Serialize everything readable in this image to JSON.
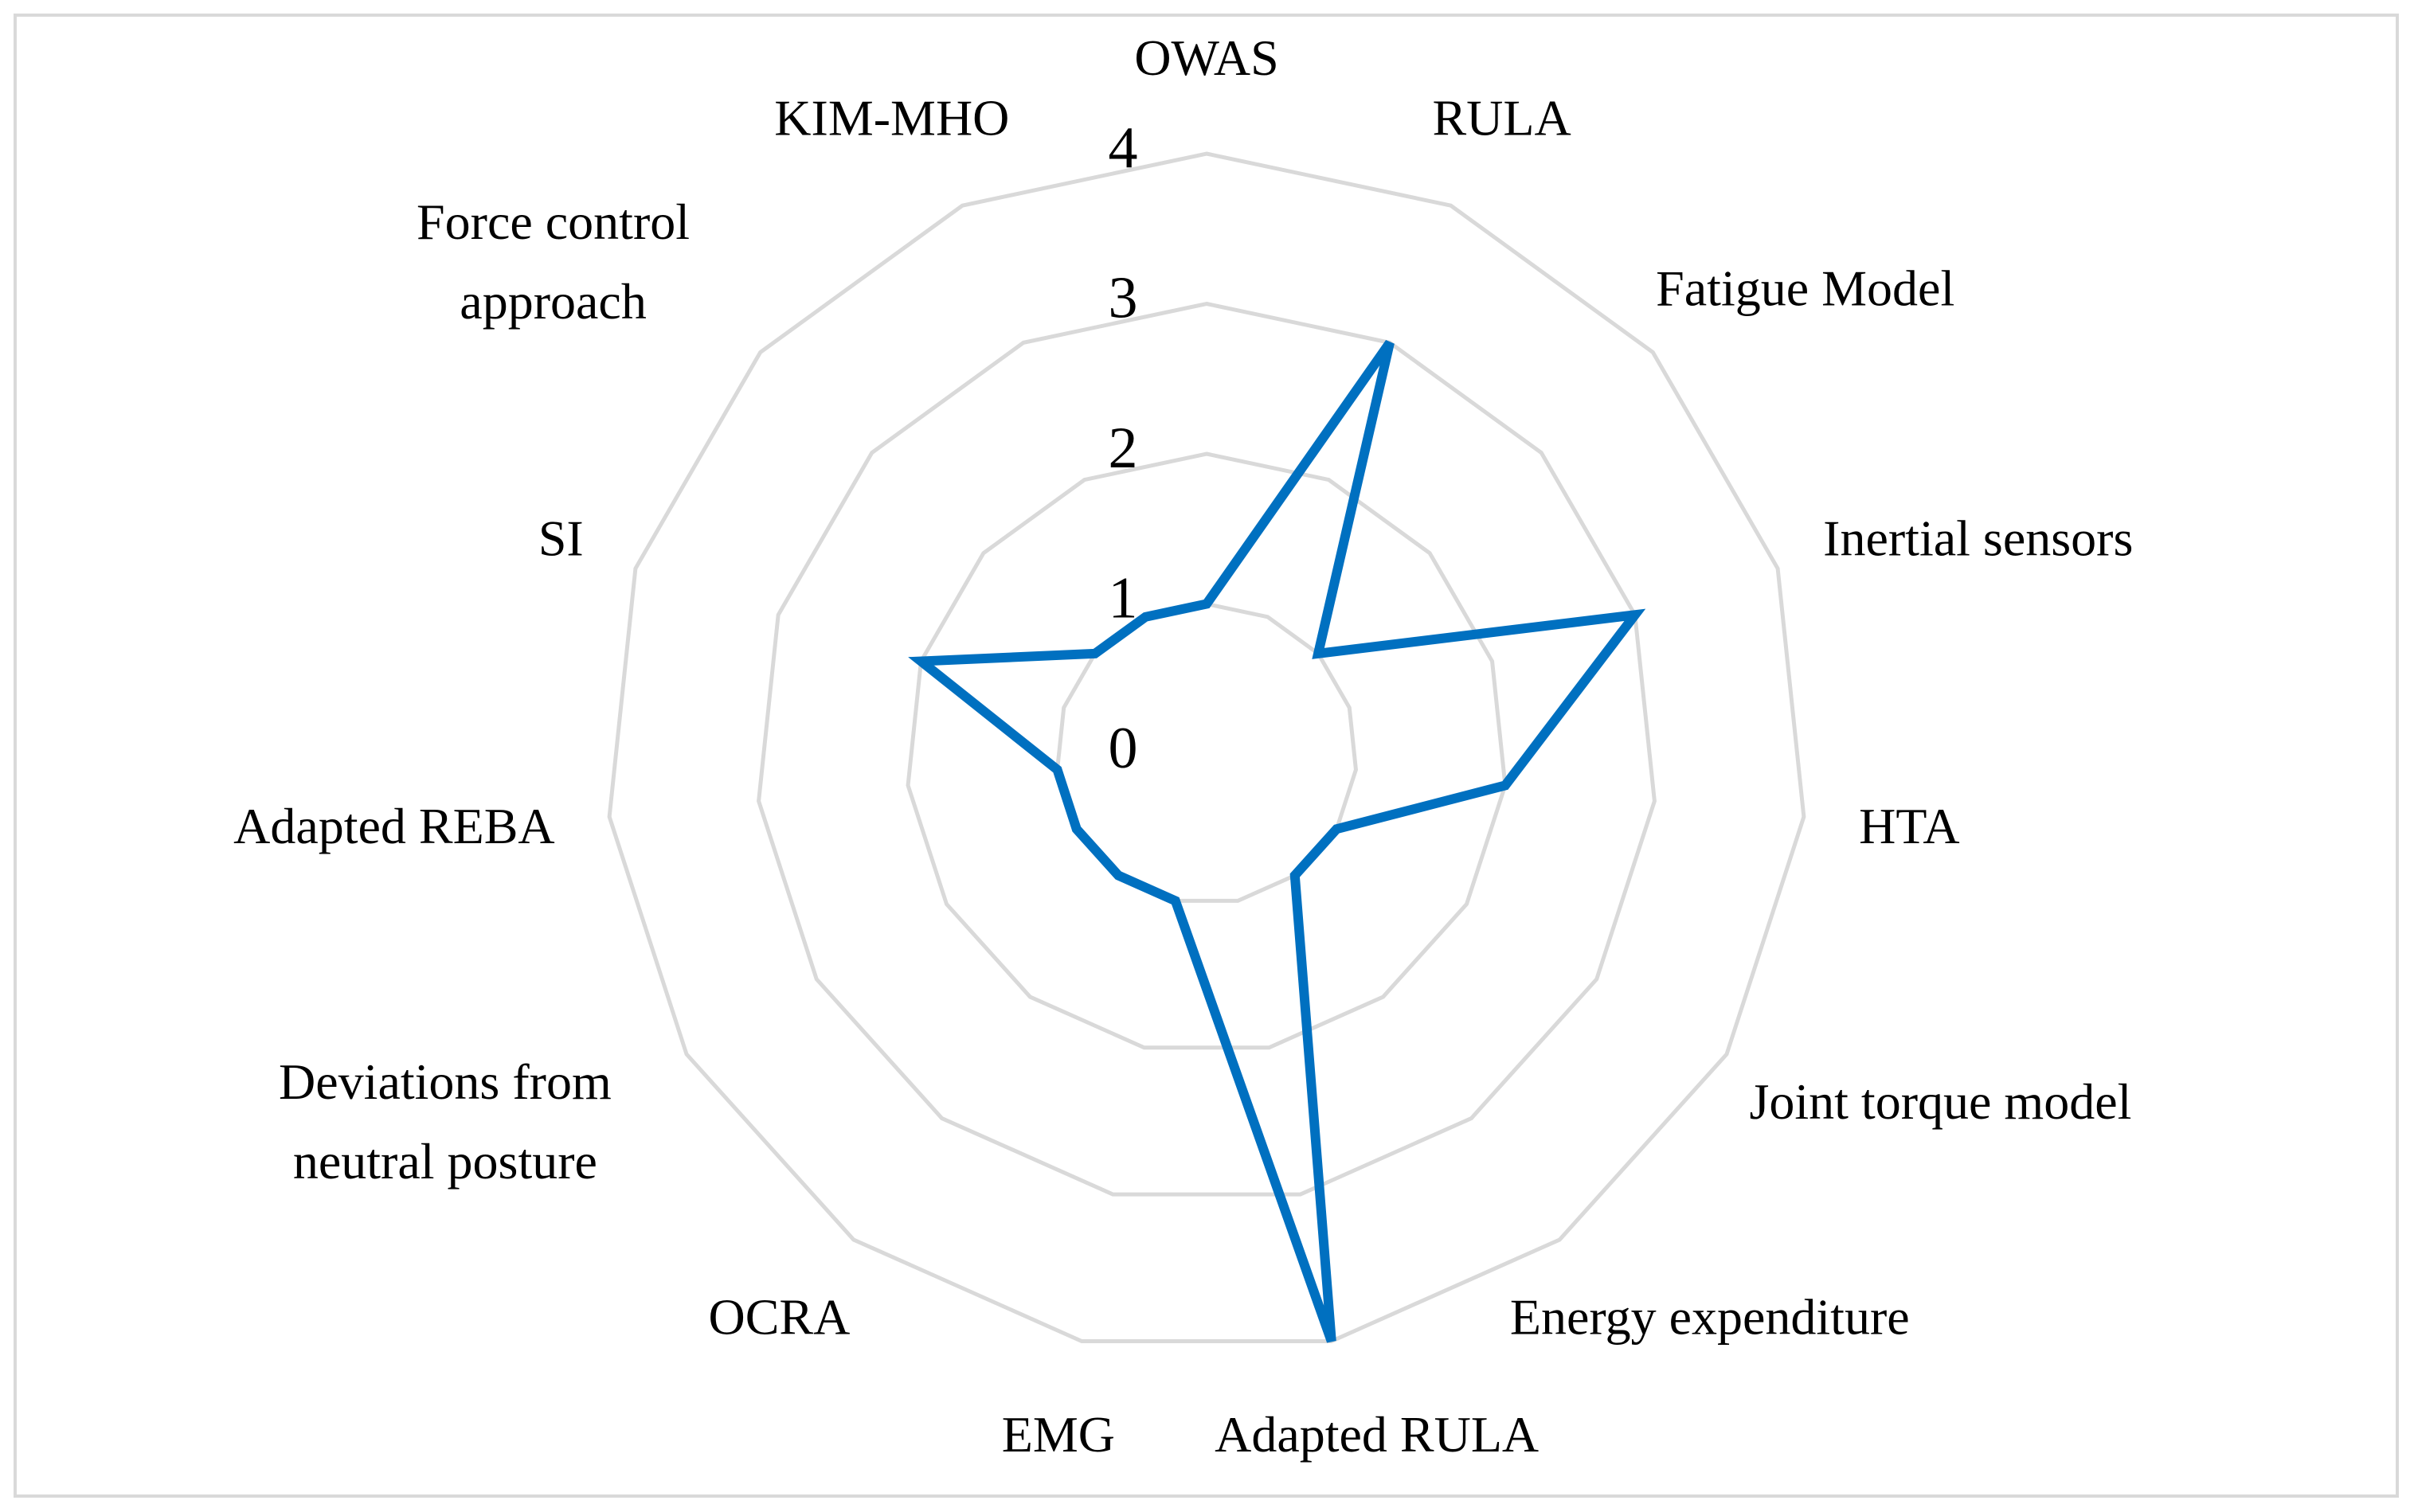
{
  "chart_data": {
    "type": "radar",
    "categories": [
      "OWAS",
      "RULA",
      "Fatigue Model",
      "Inertial sensors",
      "HTA",
      "Joint torque model",
      "Energy expenditure",
      "Adapted RULA",
      "EMG",
      "OCRA",
      "Deviations from neutral posture",
      "Adapted REBA",
      "SI",
      "Force control approach",
      "KIM-MHO"
    ],
    "series": [
      {
        "color": "#0070c0",
        "values": [
          1,
          3,
          1,
          3,
          2,
          1,
          1,
          4,
          1,
          1,
          1,
          1,
          2,
          1,
          1
        ]
      }
    ],
    "ylim": [
      0,
      4
    ],
    "yticks": [
      0,
      1,
      2,
      3,
      4
    ],
    "grid": true,
    "grid_color": "#d9d9d9"
  }
}
